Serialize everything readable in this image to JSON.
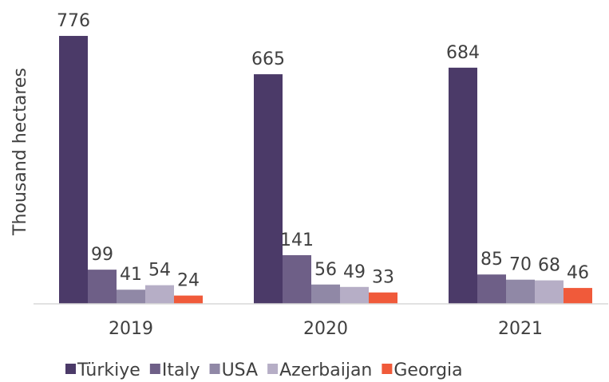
{
  "chart_data": {
    "type": "bar",
    "y_label": "Thousand hectares",
    "categories": [
      "2019",
      "2020",
      "2021"
    ],
    "series": [
      {
        "name": "Türkiye",
        "color": "#4b3a68",
        "values": [
          776,
          665,
          684
        ]
      },
      {
        "name": "Italy",
        "color": "#6e5f87",
        "values": [
          99,
          141,
          85
        ]
      },
      {
        "name": "USA",
        "color": "#9088a6",
        "values": [
          41,
          56,
          70
        ]
      },
      {
        "name": "Azerbaijan",
        "color": "#b6aec6",
        "values": [
          54,
          49,
          68
        ]
      },
      {
        "name": "Georgia",
        "color": "#f05a3a",
        "values": [
          24,
          33,
          46
        ]
      }
    ],
    "ylim": [
      0,
      880
    ],
    "legend": "bottom"
  }
}
